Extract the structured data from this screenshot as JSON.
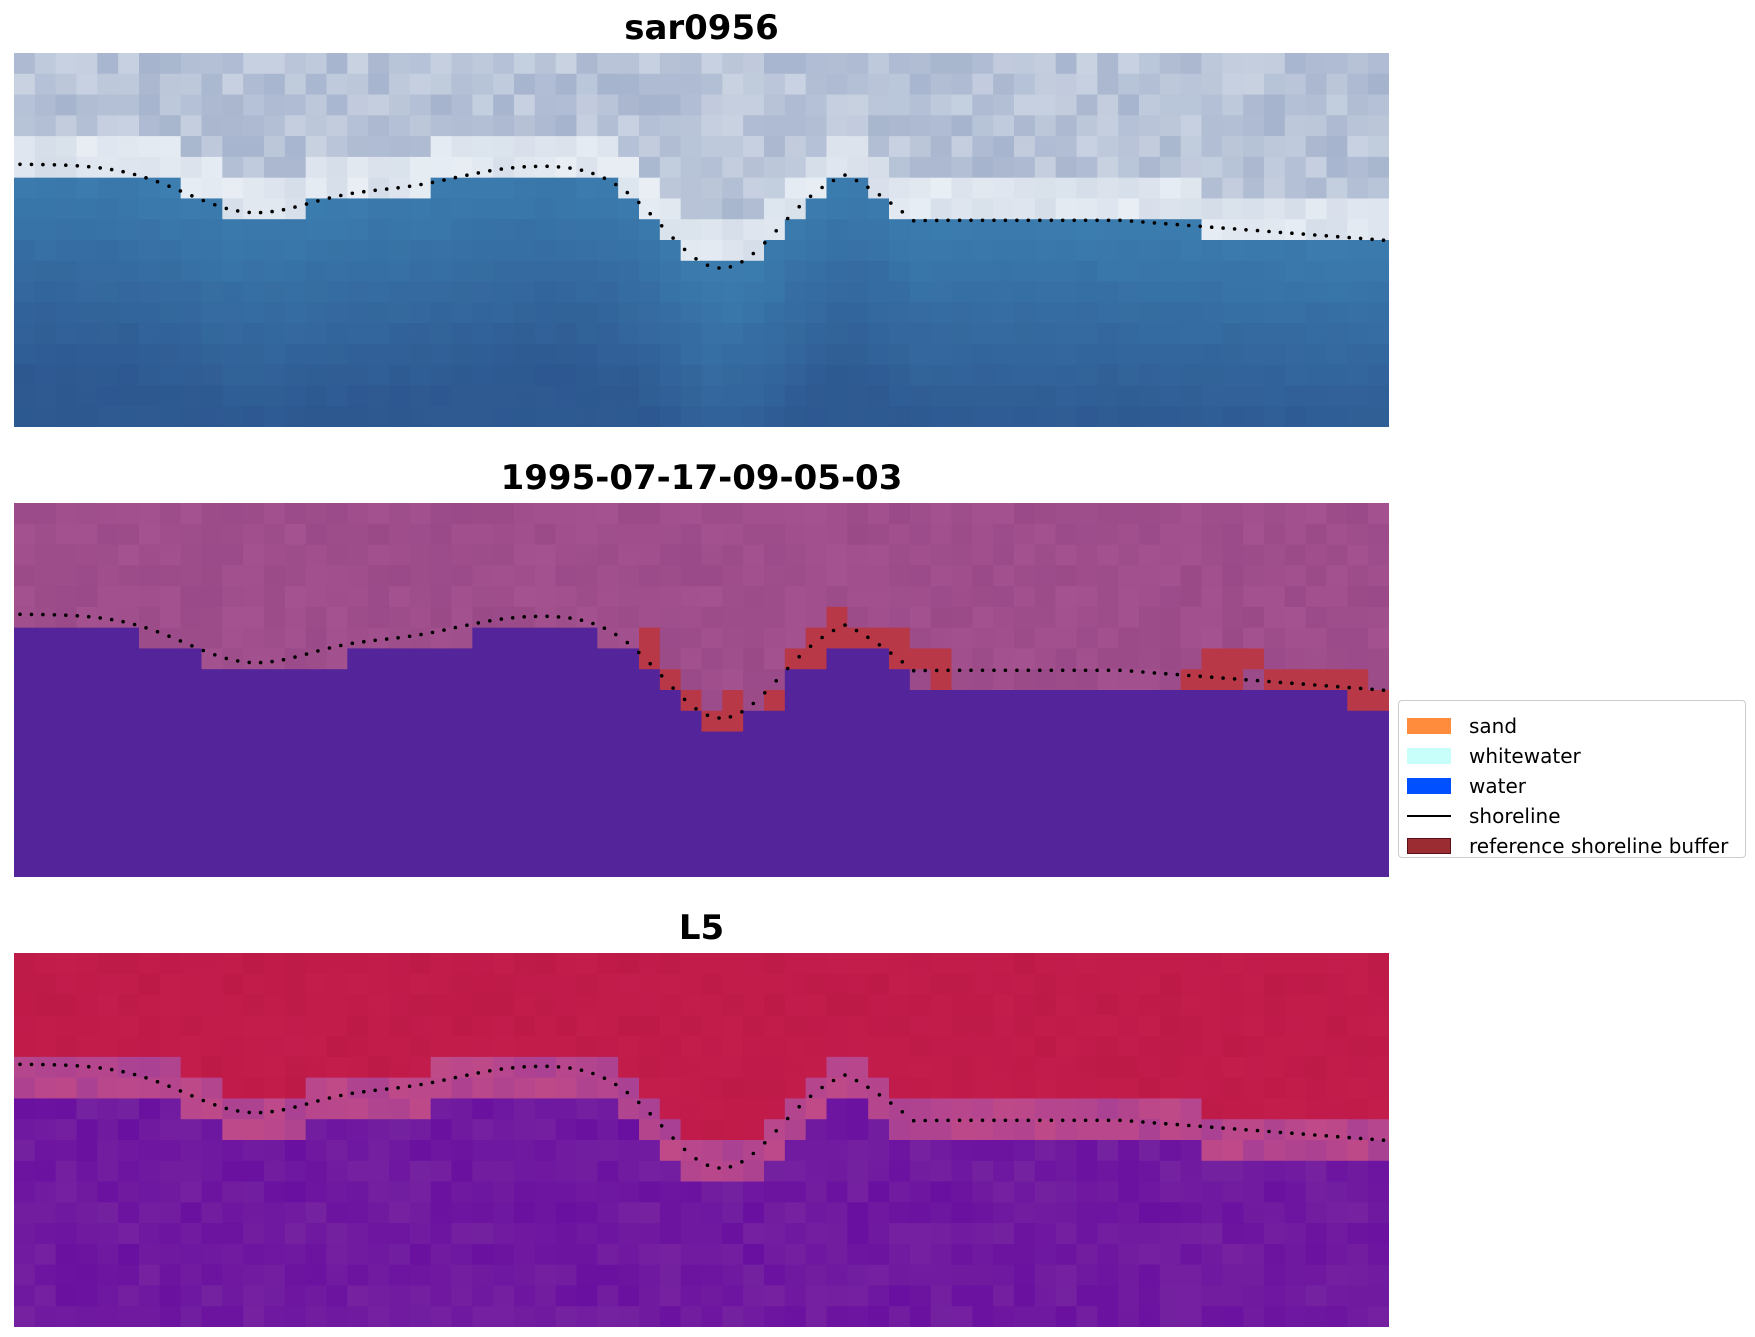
{
  "panels": [
    {
      "title": "sar0956",
      "kind": "rgb"
    },
    {
      "title": "1995-07-17-09-05-03",
      "kind": "classified"
    },
    {
      "title": "L5",
      "kind": "index"
    }
  ],
  "legend": {
    "items": [
      {
        "label": "sand",
        "type": "patch",
        "color": "#FF8C3C"
      },
      {
        "label": "whitewater",
        "type": "patch",
        "color": "#C8FFFA"
      },
      {
        "label": "water",
        "type": "patch",
        "color": "#0050FF"
      },
      {
        "label": "shoreline",
        "type": "line",
        "color": "#000000"
      },
      {
        "label": "reference shoreline buffer",
        "type": "patch",
        "color": "#9B2D32"
      }
    ]
  },
  "colors": {
    "rgb_water": "#3C7EB0",
    "rgb_whitewater": "#E8EEF4",
    "classified_water": "#53249A",
    "classified_land": "#9A4A88",
    "classified_buffer": "#B83848",
    "index_land": "#BE1A48",
    "index_water": "#6A10A0"
  }
}
